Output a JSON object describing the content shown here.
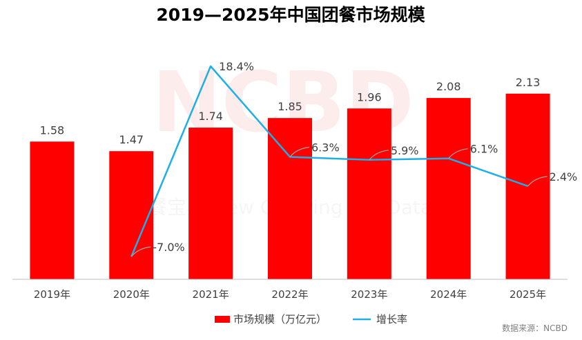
{
  "chart_data": {
    "type": "bar+line",
    "title": "2019—2025年中国团餐市场规模",
    "categories": [
      "2019年",
      "2020年",
      "2021年",
      "2022年",
      "2023年",
      "2024年",
      "2025年"
    ],
    "series": [
      {
        "name": "市场规模（万亿元）",
        "kind": "bar",
        "color": "#ff0000",
        "values": [
          1.58,
          1.47,
          1.74,
          1.85,
          1.96,
          2.08,
          2.13
        ],
        "labels": [
          "1.58",
          "1.47",
          "1.74",
          "1.85",
          "1.96",
          "2.08",
          "2.13"
        ]
      },
      {
        "name": "增长率",
        "kind": "line",
        "color": "#1eaee8",
        "values": [
          null,
          -7.0,
          18.4,
          6.3,
          5.9,
          6.1,
          2.4
        ],
        "labels": [
          null,
          "-7.0%",
          "18.4%",
          "6.3%",
          "5.9%",
          "6.1%",
          "2.4%"
        ]
      }
    ],
    "bar_ylim": [
      0,
      2.5
    ],
    "line_ylim": [
      -8,
      20
    ],
    "grid": false,
    "legend": "bottom-center",
    "source": "数据来源：NCBD"
  }
}
